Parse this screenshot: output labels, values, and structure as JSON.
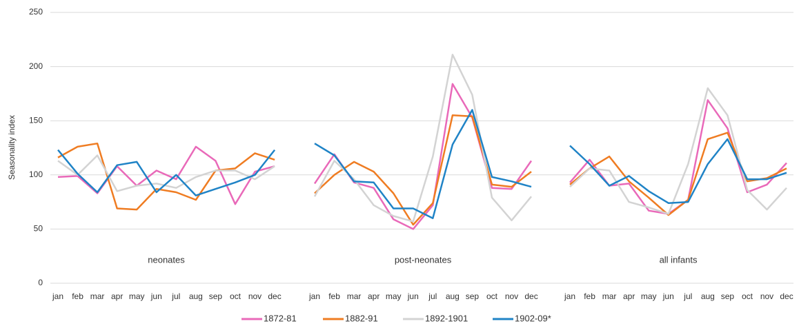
{
  "chart_data": {
    "type": "line",
    "y_label": "Seasonality index",
    "panels": [
      "neonates",
      "post-neonates",
      "all infants"
    ],
    "categories": [
      "jan",
      "feb",
      "mar",
      "apr",
      "may",
      "jun",
      "jul",
      "aug",
      "sep",
      "oct",
      "nov",
      "dec",
      "jan",
      "feb",
      "mar",
      "apr",
      "may",
      "jun",
      "jul",
      "aug",
      "sep",
      "oct",
      "nov",
      "dec",
      "jan",
      "feb",
      "mar",
      "apr",
      "may",
      "jun",
      "jul",
      "aug",
      "sep",
      "oct",
      "nov",
      "dec"
    ],
    "series": [
      {
        "name": "1872-81",
        "color": "#e969b9",
        "values": [
          98,
          99,
          83,
          108,
          90,
          104,
          96,
          126,
          113,
          73,
          103,
          108,
          92,
          119,
          93,
          88,
          59,
          50,
          72,
          184,
          153,
          88,
          87,
          113,
          93,
          114,
          90,
          92,
          67,
          64,
          77,
          169,
          143,
          84,
          91,
          111
        ]
      },
      {
        "name": "1882-91",
        "color": "#ef7c22",
        "values": [
          116,
          126,
          129,
          69,
          68,
          87,
          84,
          77,
          104,
          106,
          120,
          114,
          83,
          100,
          112,
          103,
          83,
          54,
          74,
          155,
          154,
          91,
          89,
          103,
          91,
          106,
          117,
          94,
          79,
          63,
          77,
          133,
          139,
          94,
          97,
          106
        ]
      },
      {
        "name": "1892-1901",
        "color": "#d3d3d3",
        "values": [
          113,
          100,
          118,
          85,
          90,
          92,
          88,
          98,
          104,
          104,
          96,
          108,
          80,
          113,
          96,
          72,
          62,
          57,
          117,
          211,
          174,
          79,
          58,
          80,
          89,
          106,
          104,
          75,
          70,
          64,
          110,
          180,
          155,
          86,
          68,
          88
        ]
      },
      {
        "name": "1902-09*",
        "color": "#1f83c6",
        "values": [
          123,
          101,
          84,
          109,
          112,
          84,
          100,
          81,
          87,
          93,
          100,
          123,
          129,
          118,
          94,
          93,
          69,
          69,
          60,
          128,
          160,
          98,
          94,
          89,
          127,
          110,
          90,
          99,
          85,
          74,
          75,
          110,
          133,
          96,
          96,
          102
        ]
      }
    ],
    "ylim": [
      0,
      250
    ],
    "yticks": [
      0,
      50,
      100,
      150,
      200,
      250
    ],
    "grid": true,
    "legend": "bottom"
  }
}
